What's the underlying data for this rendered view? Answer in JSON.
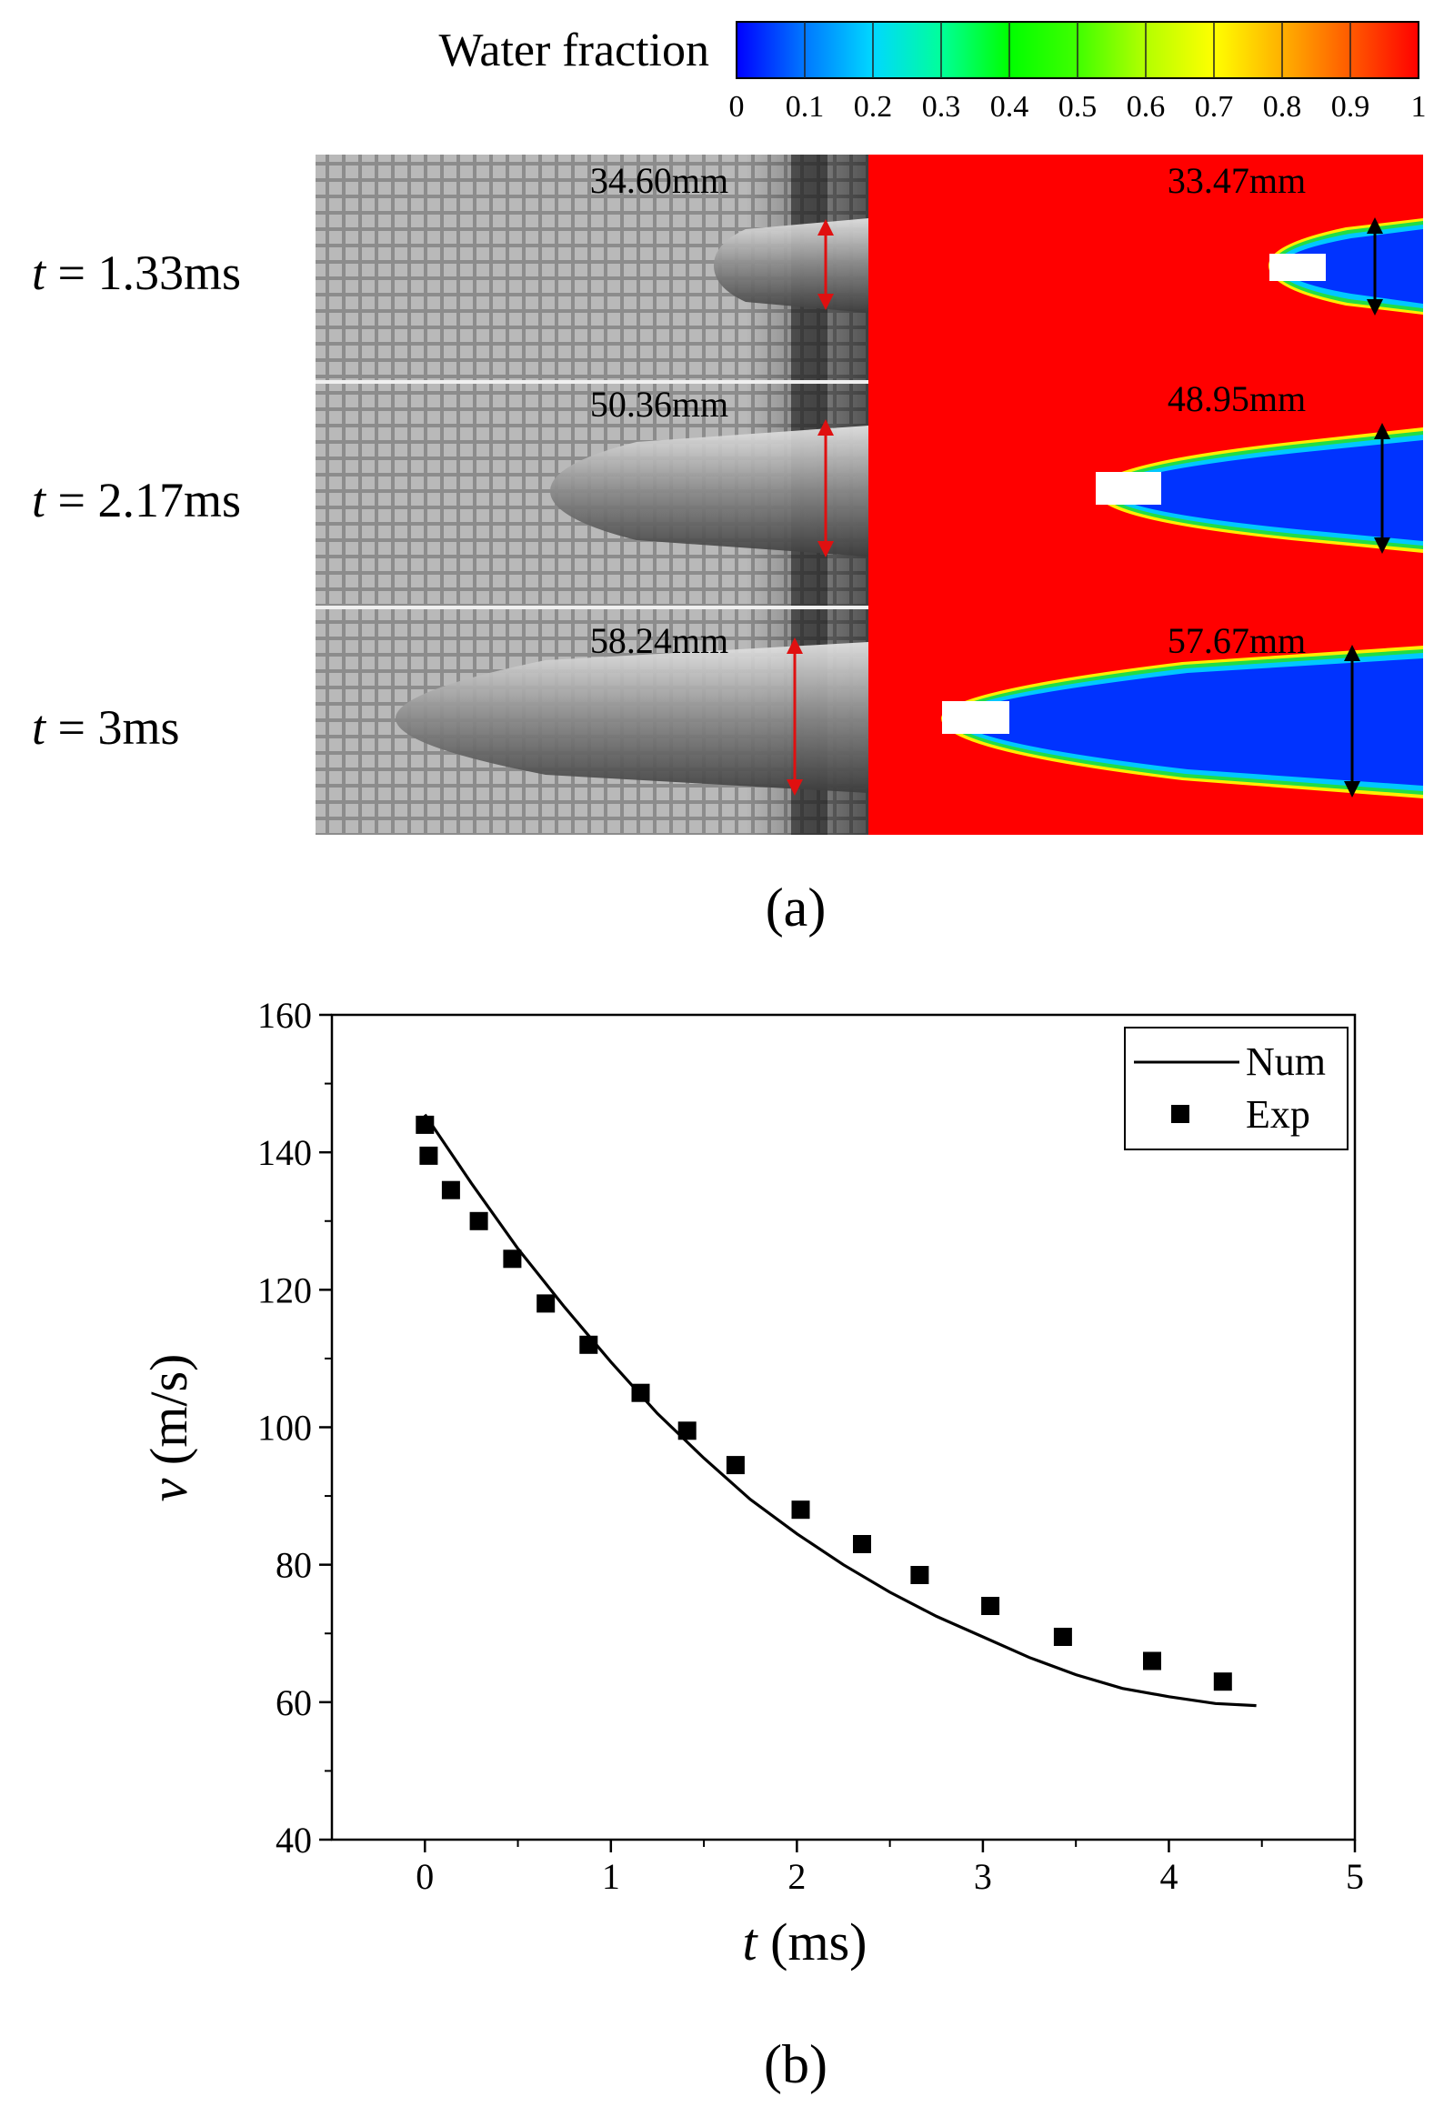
{
  "panel_a": {
    "colorbar": {
      "title": "Water fraction",
      "ticks": [
        "0",
        "0.1",
        "0.2",
        "0.3",
        "0.4",
        "0.5",
        "0.6",
        "0.7",
        "0.8",
        "0.9",
        "1"
      ],
      "colors": [
        "#0000ff",
        "#0078ff",
        "#00d8ff",
        "#00ff9a",
        "#00ff00",
        "#40ff00",
        "#b4ff00",
        "#ffff00",
        "#ffb000",
        "#ff5a00",
        "#ff0000"
      ]
    },
    "rows": [
      {
        "t_var": "t",
        "t_value": " = 1.33ms",
        "exp_label": "34.60mm",
        "num_label": "33.47mm"
      },
      {
        "t_var": "t",
        "t_value": " = 2.17ms",
        "exp_label": "50.36mm",
        "num_label": "48.95mm"
      },
      {
        "t_var": "t",
        "t_value": " = 3ms",
        "exp_label": "58.24mm",
        "num_label": "57.67mm"
      }
    ],
    "caption": "(a)",
    "colors": {
      "water": "#ff0000",
      "vapor": "#0033ff",
      "exp_marker": "#e01010"
    }
  },
  "panel_b": {
    "caption": "(b)",
    "ylabel_var": "v",
    "ylabel_unit": " (m/s)",
    "xlabel_var": "t",
    "xlabel_unit": " (ms)"
  },
  "chart_data": {
    "type": "line",
    "title": "",
    "xlabel": "t (ms)",
    "ylabel": "v (m/s)",
    "xlim": [
      -0.5,
      5
    ],
    "ylim": [
      40,
      160
    ],
    "xticks": [
      0,
      1,
      2,
      3,
      4,
      5
    ],
    "yticks": [
      40,
      60,
      80,
      100,
      120,
      140,
      160
    ],
    "legend_position": "top-right",
    "series": [
      {
        "name": "Num",
        "style": "line",
        "x": [
          0.0,
          0.25,
          0.5,
          0.75,
          1.0,
          1.25,
          1.5,
          1.75,
          2.0,
          2.25,
          2.5,
          2.75,
          3.0,
          3.25,
          3.5,
          3.75,
          4.0,
          4.25,
          4.47
        ],
        "y": [
          145.5,
          135.5,
          126.0,
          117.5,
          109.5,
          102.0,
          95.5,
          89.5,
          84.5,
          80.0,
          76.0,
          72.5,
          69.5,
          66.5,
          64.0,
          62.0,
          60.8,
          59.8,
          59.5
        ]
      },
      {
        "name": "Exp",
        "style": "square-markers",
        "x": [
          0.0,
          0.02,
          0.14,
          0.29,
          0.47,
          0.65,
          0.88,
          1.16,
          1.41,
          1.67,
          2.02,
          2.35,
          2.66,
          3.04,
          3.43,
          3.91,
          4.29
        ],
        "y": [
          144.0,
          139.5,
          134.5,
          130.0,
          124.5,
          118.0,
          112.0,
          105.0,
          99.5,
          94.5,
          88.0,
          83.0,
          78.5,
          74.0,
          69.5,
          66.0,
          63.0
        ]
      }
    ]
  }
}
